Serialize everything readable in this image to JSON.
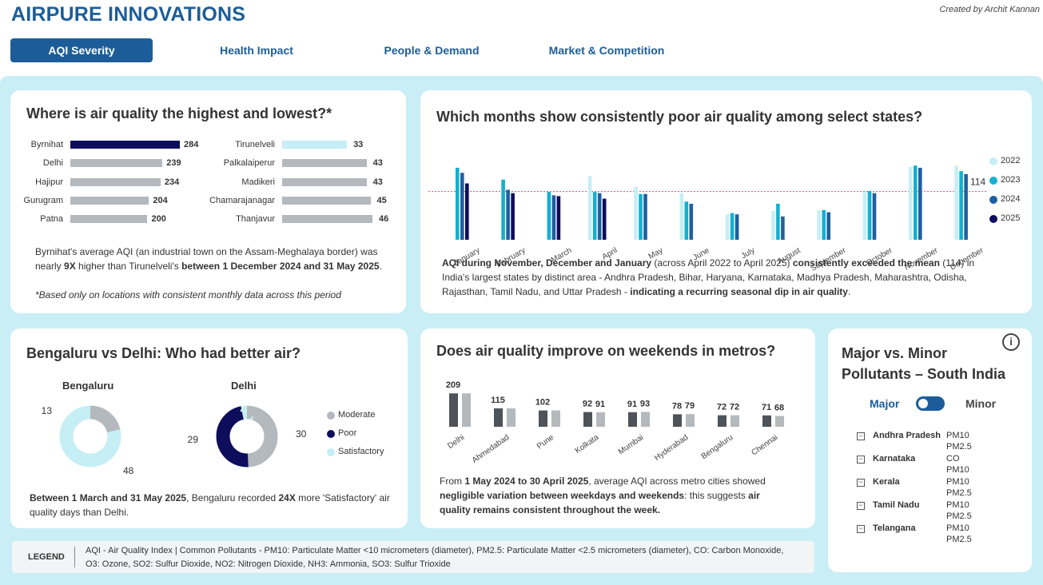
{
  "header": {
    "brand": "AIRPURE INNOVATIONS",
    "credit": "Created by Archit Kannan",
    "tabs": [
      {
        "label": "AQI Severity",
        "active": true
      },
      {
        "label": "Health Impact",
        "active": false
      },
      {
        "label": "People & Demand",
        "active": false
      },
      {
        "label": "Market & Competition",
        "active": false
      }
    ]
  },
  "colors": {
    "brand": "#1c5d99",
    "canvas": "#c9eef5",
    "highlight_bar": "#0d0d5c",
    "grey_bar": "#b4b9be",
    "light_bar": "#c6eef5"
  },
  "card1": {
    "title": "Where is air quality the highest and lowest?*",
    "highest": [
      {
        "label": "Byrnihat",
        "value": 284
      },
      {
        "label": "Delhi",
        "value": 239
      },
      {
        "label": "Hajipur",
        "value": 234
      },
      {
        "label": "Gurugram",
        "value": 204
      },
      {
        "label": "Patna",
        "value": 200
      }
    ],
    "lowest": [
      {
        "label": "Tirunelveli",
        "value": 33
      },
      {
        "label": "Palkalaiperur",
        "value": 43
      },
      {
        "label": "Madikeri",
        "value": 43
      },
      {
        "label": "Chamarajanagar",
        "value": 45
      },
      {
        "label": "Thanjavur",
        "value": 46
      }
    ],
    "note_a": "Byrnihat's average AQI (an industrial town on the Assam-Meghalaya border) was",
    "note_b1": "nearly ",
    "note_b2": "9X",
    "note_b3": " higher than Tirunelveli's ",
    "note_b4": "between 1 December 2024 and 31 May 2025",
    "note_b5": ".",
    "footnote": "*Based only on locations with consistent monthly data across this period"
  },
  "card2": {
    "title": "Which months show consistently poor air quality among select states?",
    "mean_label": "114",
    "note_p1": "AQI during November, December and January",
    "note_p2": " (across April 2022 to April 2025) ",
    "note_p3": "consistently exceeded the mean",
    "note_p4": " (114) in",
    "note_line2": "India's largest states by distinct area - Andhra Pradesh, Bihar, Haryana, Karnataka, Madhya Pradesh, Maharashtra, Odisha,",
    "note_line3a": "Rajasthan, Tamil Nadu, and Uttar Pradesh - ",
    "note_line3b": "indicating a recurring seasonal dip in air quality",
    "note_line3c": "."
  },
  "card3": {
    "title": "Bengaluru vs Delhi: Who had better air?",
    "bengaluru_label": "Bengaluru",
    "delhi_label": "Delhi",
    "legend": [
      "Moderate",
      "Poor",
      "Satisfactory"
    ],
    "note_p1": "Between 1 March and 31 May 2025",
    "note_p2": ", Bengaluru recorded ",
    "note_p3": "24X",
    "note_p4": " more 'Satisfactory' air",
    "note_line2": "quality days than Delhi."
  },
  "card4": {
    "title": "Does air quality improve on weekends in metros?",
    "note_p1": "From ",
    "note_p2": "1 May 2024 to 30 April 2025",
    "note_p3": ", average AQI across metro cities showed",
    "note_line2a": "negligible variation between weekdays and weekends",
    "note_line2b": ": this suggests ",
    "note_line2c": "air",
    "note_line3": "quality remains consistent throughout the week."
  },
  "card5": {
    "title_line1": "Major vs. Minor",
    "title_line2": "Pollutants – South India",
    "toggle_major": "Major",
    "toggle_minor": "Minor",
    "info": "i",
    "rows": [
      {
        "state": "Andhra Pradesh",
        "pollutants": [
          "PM10",
          "PM2.5"
        ]
      },
      {
        "state": "Karnataka",
        "pollutants": [
          "CO",
          "PM10"
        ]
      },
      {
        "state": "Kerala",
        "pollutants": [
          "PM10",
          "PM2.5"
        ]
      },
      {
        "state": "Tamil Nadu",
        "pollutants": [
          "PM10",
          "PM2.5"
        ]
      },
      {
        "state": "Telangana",
        "pollutants": [
          "PM10",
          "PM2.5"
        ]
      }
    ]
  },
  "legend_box": {
    "label": "LEGEND",
    "line1": "AQI - Air Quality Index | Common Pollutants - PM10: Particulate Matter <10 micrometers (diameter), PM2.5: Particulate Matter <2.5 micrometers (diameter), CO: Carbon Monoxide,",
    "line2": "O3: Ozone, SO2: Sulfur Dioxide, NO2: Nitrogen Dioxide, NH3: Ammonia, SO3: Sulfur Trioxide"
  },
  "chart_data": [
    {
      "type": "bar",
      "title": "Where is air quality the highest and lowest?*",
      "series": [
        {
          "name": "",
          "categories": [
            "Byrnihat",
            "Delhi",
            "Hajipur",
            "Gurugram",
            "Patna"
          ],
          "values": [
            284,
            239,
            234,
            204,
            200
          ]
        },
        {
          "name": "",
          "categories": [
            "Tirunelveli",
            "Palkalaiperur",
            "Madikeri",
            "Chamarajanagar",
            "Thanjavur"
          ],
          "values": [
            33,
            43,
            43,
            45,
            46
          ]
        }
      ]
    },
    {
      "type": "bar",
      "title": "Which months show consistently poor air quality among select states?",
      "categories": [
        "January",
        "February",
        "March",
        "April",
        "May",
        "June",
        "July",
        "August",
        "September",
        "October",
        "November",
        "December"
      ],
      "series": [
        {
          "name": "2022",
          "color": "#c6eef5",
          "values": [
            null,
            null,
            null,
            150,
            125,
            110,
            60,
            68,
            70,
            112,
            172,
            175
          ]
        },
        {
          "name": "2023",
          "color": "#13b0d0",
          "values": [
            170,
            142,
            113,
            113,
            108,
            90,
            63,
            85,
            70,
            115,
            175,
            162
          ]
        },
        {
          "name": "2024",
          "color": "#1f5fa0",
          "values": [
            158,
            118,
            105,
            110,
            108,
            85,
            60,
            55,
            65,
            110,
            170,
            155
          ]
        },
        {
          "name": "2025",
          "color": "#0d0d5c",
          "values": [
            133,
            110,
            103,
            97,
            null,
            null,
            null,
            null,
            null,
            null,
            null,
            null
          ]
        }
      ],
      "mean": 114,
      "ylim": [
        0,
        185
      ],
      "legend": "right"
    },
    {
      "type": "pie",
      "title": "Bengaluru vs Delhi: Who had better air?",
      "charts": [
        {
          "name": "Bengaluru",
          "slices": [
            {
              "label": "Moderate",
              "value": 13,
              "color": "#b4b9be"
            },
            {
              "label": "Poor",
              "value": 0,
              "color": "#0d0d5c"
            },
            {
              "label": "Satisfactory",
              "value": 48,
              "color": "#c6eef5"
            }
          ]
        },
        {
          "name": "Delhi",
          "slices": [
            {
              "label": "Moderate",
              "value": 30,
              "color": "#b4b9be"
            },
            {
              "label": "Poor",
              "value": 29,
              "color": "#0d0d5c"
            },
            {
              "label": "Satisfactory",
              "value": 2,
              "color": "#c6eef5"
            }
          ]
        }
      ]
    },
    {
      "type": "bar",
      "title": "Does air quality improve on weekends in metros?",
      "categories": [
        "Delhi",
        "Ahmedabad",
        "Pune",
        "Kolkata",
        "Mumbai",
        "Hyderabad",
        "Bengaluru",
        "Chennai"
      ],
      "series": [
        {
          "name": "",
          "color": "#4d5359",
          "values": [
            209,
            115,
            102,
            92,
            91,
            78,
            72,
            71
          ]
        },
        {
          "name": "",
          "color": "#b4b9be",
          "values": [
            209,
            115,
            102,
            91,
            93,
            79,
            72,
            68
          ]
        }
      ]
    }
  ]
}
